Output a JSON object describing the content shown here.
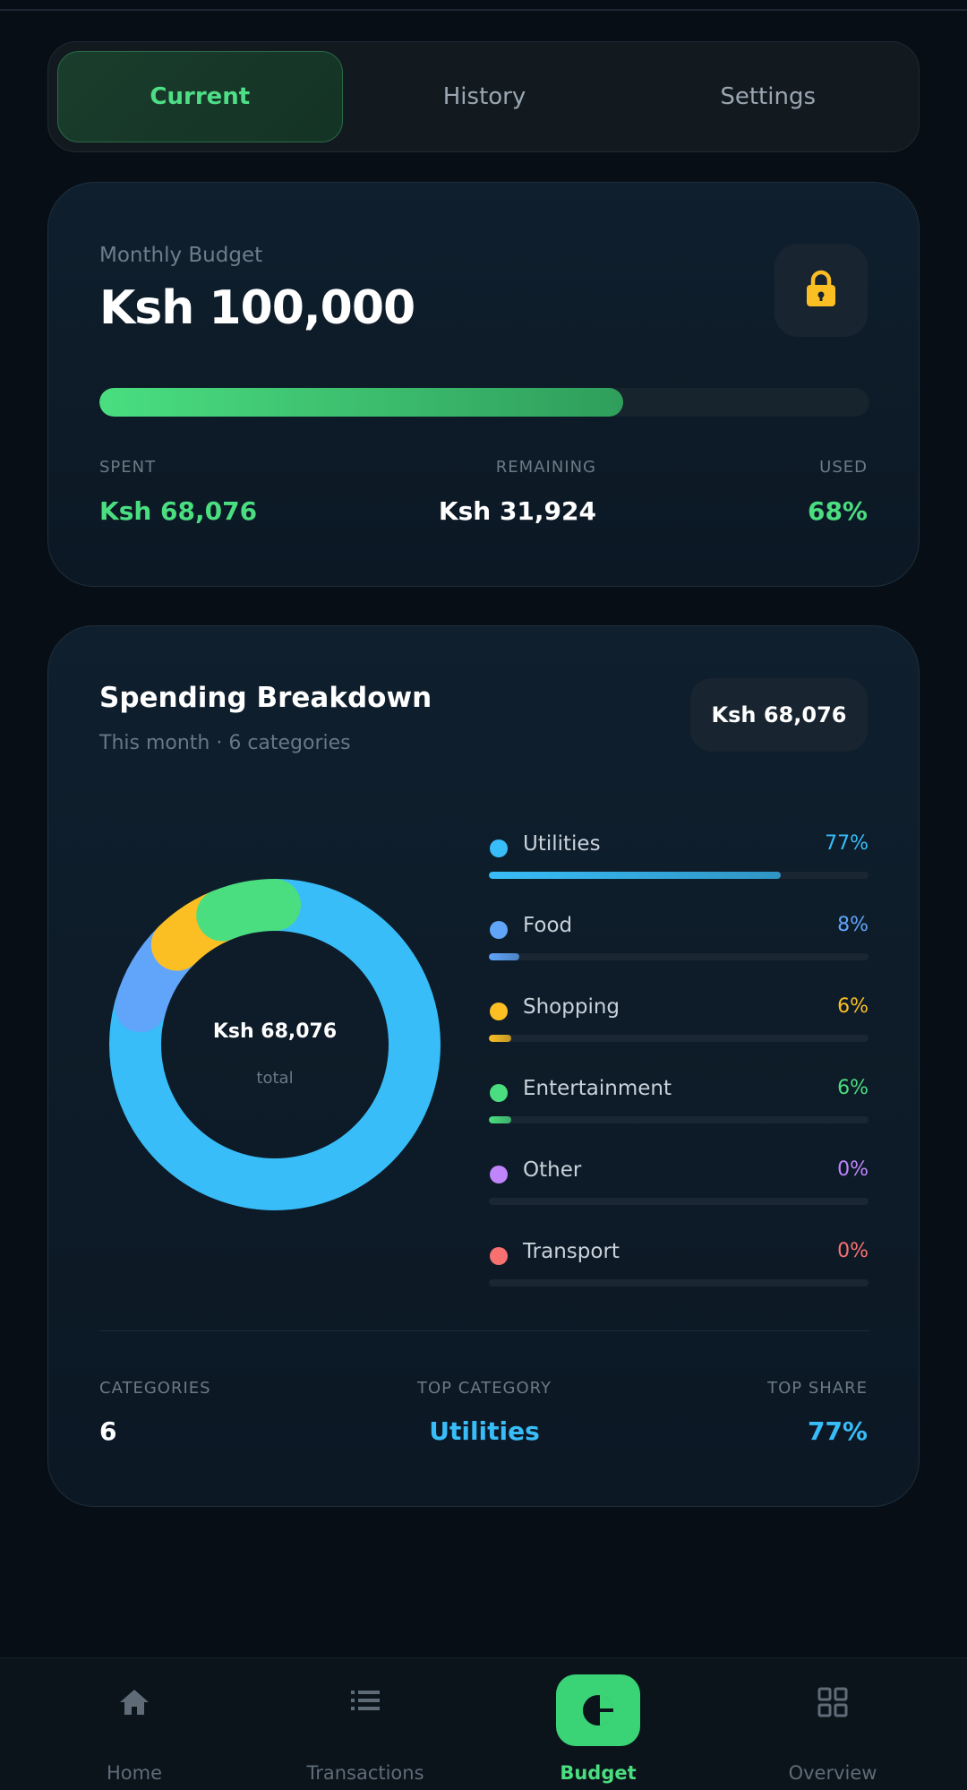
{
  "tabs": [
    {
      "label": "Current",
      "active": true
    },
    {
      "label": "History",
      "active": false
    },
    {
      "label": "Settings",
      "active": false
    }
  ],
  "budget": {
    "label": "Monthly Budget",
    "amount": "Ksh 100,000",
    "lock_icon": "lock-icon",
    "progress_fraction": 0.68,
    "spent_label": "SPENT",
    "spent_value": "Ksh 68,076",
    "remaining_label": "REMAINING",
    "remaining_value": "Ksh 31,924",
    "used_label": "USED",
    "used_value": "68%"
  },
  "breakdown": {
    "title": "Spending Breakdown",
    "subtitle": "This month · 6 categories",
    "total_pill": "Ksh 68,076",
    "center_value": "Ksh 68,076",
    "center_label": "total",
    "categories_label": "CATEGORIES",
    "categories_value": "6",
    "top_category_label": "TOP CATEGORY",
    "top_category_value": "Utilities",
    "top_share_label": "TOP SHARE",
    "top_share_value": "77%"
  },
  "chart_data": {
    "type": "pie",
    "donut": true,
    "categories": [
      "Utilities",
      "Food",
      "Shopping",
      "Entertainment",
      "Other",
      "Transport"
    ],
    "values": [
      77,
      8,
      6,
      6,
      0,
      0
    ],
    "labels": [
      "77%",
      "8%",
      "6%",
      "6%",
      "0%",
      "0%"
    ],
    "colors": [
      "#38bdf8",
      "#60a5fa",
      "#fbbf24",
      "#4ade80",
      "#c084fc",
      "#f87171"
    ]
  },
  "nav": [
    {
      "label": "Home",
      "icon": "home-icon",
      "active": false
    },
    {
      "label": "Transactions",
      "icon": "list-icon",
      "active": false
    },
    {
      "label": "Budget",
      "icon": "pie-chart-icon",
      "active": true
    },
    {
      "label": "Overview",
      "icon": "grid-icon",
      "active": false
    }
  ]
}
